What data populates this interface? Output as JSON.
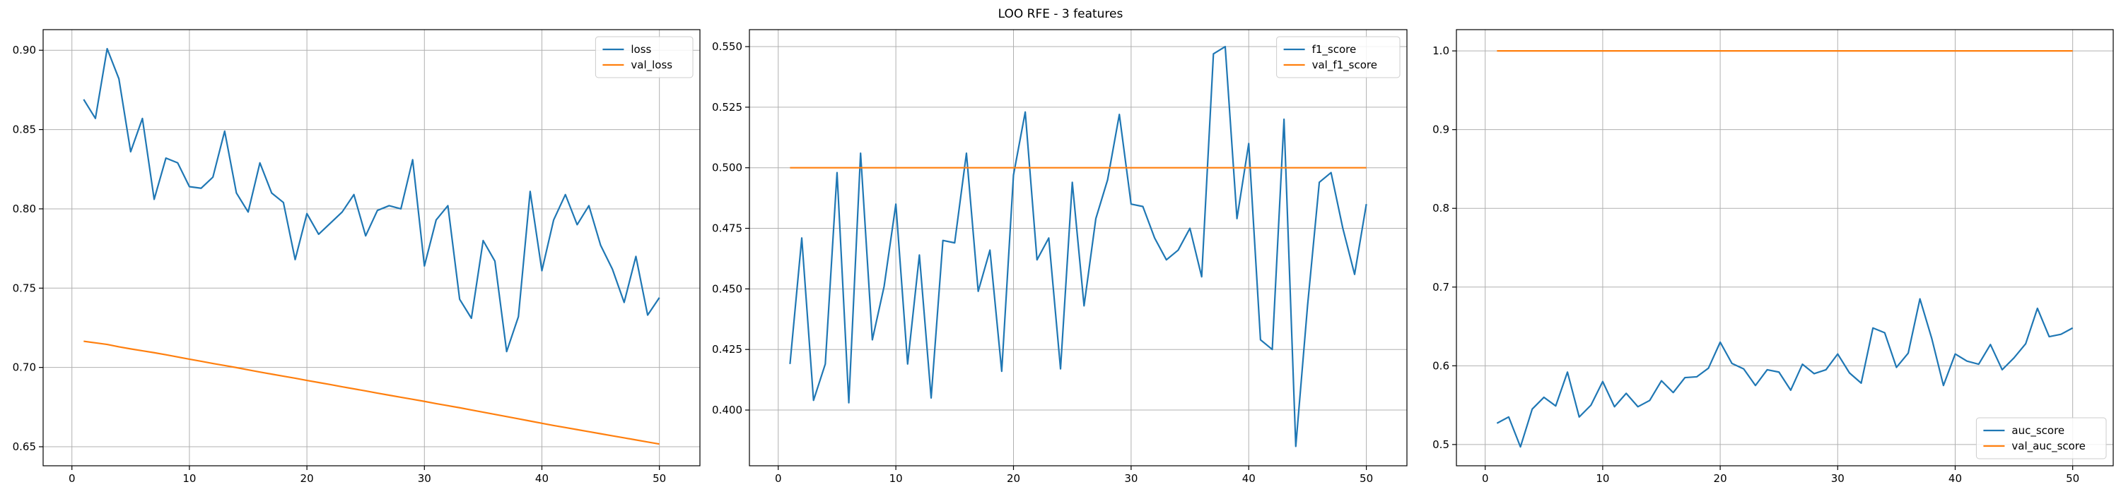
{
  "figure": {
    "title": "LOO RFE - 3 features"
  },
  "colors": {
    "train": "#1f77b4",
    "val": "#ff7f0e",
    "grid": "#b0b0b0",
    "axis": "#000000"
  },
  "chart_data": [
    {
      "type": "line",
      "title": "",
      "xlabel": "",
      "ylabel": "",
      "xlim": [
        -2.45,
        53.45
      ],
      "ylim": [
        0.638,
        0.913
      ],
      "xticks": [
        0,
        10,
        20,
        30,
        40,
        50
      ],
      "yticks": [
        0.65,
        0.7,
        0.75,
        0.8,
        0.85,
        0.9
      ],
      "ytick_labels": [
        "0.65",
        "0.70",
        "0.75",
        "0.80",
        "0.85",
        "0.90"
      ],
      "grid": true,
      "legend": "top-right",
      "x": [
        1,
        2,
        3,
        4,
        5,
        6,
        7,
        8,
        9,
        10,
        11,
        12,
        13,
        14,
        15,
        16,
        17,
        18,
        19,
        20,
        21,
        22,
        23,
        24,
        25,
        26,
        27,
        28,
        29,
        30,
        31,
        32,
        33,
        34,
        35,
        36,
        37,
        38,
        39,
        40,
        41,
        42,
        43,
        44,
        45,
        46,
        47,
        48,
        49,
        50
      ],
      "series": [
        {
          "name": "loss",
          "color": "#1f77b4",
          "values": [
            0.869,
            0.857,
            0.901,
            0.882,
            0.836,
            0.857,
            0.806,
            0.832,
            0.829,
            0.814,
            0.813,
            0.82,
            0.849,
            0.81,
            0.798,
            0.829,
            0.81,
            0.804,
            0.768,
            0.797,
            0.784,
            0.791,
            0.798,
            0.809,
            0.783,
            0.799,
            0.802,
            0.8,
            0.831,
            0.764,
            0.793,
            0.802,
            0.743,
            0.731,
            0.78,
            0.767,
            0.71,
            0.732,
            0.811,
            0.761,
            0.793,
            0.809,
            0.79,
            0.802,
            0.777,
            0.762,
            0.741,
            0.77,
            0.733,
            0.744
          ]
        },
        {
          "name": "val_loss",
          "color": "#ff7f0e",
          "values": [
            0.7165,
            0.7155,
            0.7145,
            0.713,
            0.7117,
            0.7105,
            0.7093,
            0.708,
            0.7066,
            0.7052,
            0.7039,
            0.7025,
            0.7012,
            0.6999,
            0.6985,
            0.6971,
            0.6958,
            0.6945,
            0.6932,
            0.6918,
            0.6905,
            0.6892,
            0.6878,
            0.6865,
            0.6852,
            0.6838,
            0.6825,
            0.6812,
            0.6799,
            0.6786,
            0.6772,
            0.6759,
            0.6746,
            0.6732,
            0.6718,
            0.6704,
            0.669,
            0.6676,
            0.6662,
            0.6648,
            0.6634,
            0.6621,
            0.6608,
            0.6595,
            0.6582,
            0.6569,
            0.6556,
            0.6543,
            0.653,
            0.6517
          ]
        }
      ]
    },
    {
      "type": "line",
      "title": "",
      "xlabel": "",
      "ylabel": "",
      "xlim": [
        -2.45,
        53.45
      ],
      "ylim": [
        0.377,
        0.557
      ],
      "xticks": [
        0,
        10,
        20,
        30,
        40,
        50
      ],
      "yticks": [
        0.4,
        0.425,
        0.45,
        0.475,
        0.5,
        0.525,
        0.55
      ],
      "ytick_labels": [
        "0.400",
        "0.425",
        "0.450",
        "0.475",
        "0.500",
        "0.525",
        "0.550"
      ],
      "grid": true,
      "legend": "top-right",
      "x": [
        1,
        2,
        3,
        4,
        5,
        6,
        7,
        8,
        9,
        10,
        11,
        12,
        13,
        14,
        15,
        16,
        17,
        18,
        19,
        20,
        21,
        22,
        23,
        24,
        25,
        26,
        27,
        28,
        29,
        30,
        31,
        32,
        33,
        34,
        35,
        36,
        37,
        38,
        39,
        40,
        41,
        42,
        43,
        44,
        45,
        46,
        47,
        48,
        49,
        50
      ],
      "series": [
        {
          "name": "f1_score",
          "color": "#1f77b4",
          "values": [
            0.419,
            0.471,
            0.404,
            0.419,
            0.498,
            0.403,
            0.506,
            0.429,
            0.451,
            0.485,
            0.419,
            0.464,
            0.405,
            0.47,
            0.469,
            0.506,
            0.449,
            0.466,
            0.416,
            0.497,
            0.523,
            0.462,
            0.471,
            0.417,
            0.494,
            0.443,
            0.479,
            0.495,
            0.522,
            0.485,
            0.484,
            0.471,
            0.462,
            0.466,
            0.475,
            0.455,
            0.547,
            0.55,
            0.479,
            0.51,
            0.429,
            0.425,
            0.52,
            0.385,
            0.443,
            0.494,
            0.498,
            0.475,
            0.456,
            0.485
          ]
        },
        {
          "name": "val_f1_score",
          "color": "#ff7f0e",
          "values": [
            0.5,
            0.5,
            0.5,
            0.5,
            0.5,
            0.5,
            0.5,
            0.5,
            0.5,
            0.5,
            0.5,
            0.5,
            0.5,
            0.5,
            0.5,
            0.5,
            0.5,
            0.5,
            0.5,
            0.5,
            0.5,
            0.5,
            0.5,
            0.5,
            0.5,
            0.5,
            0.5,
            0.5,
            0.5,
            0.5,
            0.5,
            0.5,
            0.5,
            0.5,
            0.5,
            0.5,
            0.5,
            0.5,
            0.5,
            0.5,
            0.5,
            0.5,
            0.5,
            0.5,
            0.5,
            0.5,
            0.5,
            0.5,
            0.5,
            0.5
          ]
        }
      ]
    },
    {
      "type": "line",
      "title": "",
      "xlabel": "",
      "ylabel": "",
      "xlim": [
        -2.45,
        53.45
      ],
      "ylim": [
        0.473,
        1.027
      ],
      "xticks": [
        0,
        10,
        20,
        30,
        40,
        50
      ],
      "yticks": [
        0.5,
        0.6,
        0.7,
        0.8,
        0.9,
        1.0
      ],
      "ytick_labels": [
        "0.5",
        "0.6",
        "0.7",
        "0.8",
        "0.9",
        "1.0"
      ],
      "grid": true,
      "legend": "bottom-right",
      "x": [
        1,
        2,
        3,
        4,
        5,
        6,
        7,
        8,
        9,
        10,
        11,
        12,
        13,
        14,
        15,
        16,
        17,
        18,
        19,
        20,
        21,
        22,
        23,
        24,
        25,
        26,
        27,
        28,
        29,
        30,
        31,
        32,
        33,
        34,
        35,
        36,
        37,
        38,
        39,
        40,
        41,
        42,
        43,
        44,
        45,
        46,
        47,
        48,
        49,
        50
      ],
      "series": [
        {
          "name": "auc_score",
          "color": "#1f77b4",
          "values": [
            0.527,
            0.535,
            0.497,
            0.545,
            0.56,
            0.549,
            0.592,
            0.535,
            0.55,
            0.58,
            0.548,
            0.565,
            0.548,
            0.556,
            0.581,
            0.566,
            0.585,
            0.586,
            0.597,
            0.63,
            0.603,
            0.596,
            0.575,
            0.595,
            0.592,
            0.569,
            0.602,
            0.59,
            0.595,
            0.615,
            0.591,
            0.578,
            0.648,
            0.642,
            0.598,
            0.616,
            0.685,
            0.635,
            0.575,
            0.615,
            0.606,
            0.602,
            0.627,
            0.595,
            0.61,
            0.628,
            0.673,
            0.637,
            0.64,
            0.648
          ]
        },
        {
          "name": "val_auc_score",
          "color": "#ff7f0e",
          "values": [
            1.0,
            1.0,
            1.0,
            1.0,
            1.0,
            1.0,
            1.0,
            1.0,
            1.0,
            1.0,
            1.0,
            1.0,
            1.0,
            1.0,
            1.0,
            1.0,
            1.0,
            1.0,
            1.0,
            1.0,
            1.0,
            1.0,
            1.0,
            1.0,
            1.0,
            1.0,
            1.0,
            1.0,
            1.0,
            1.0,
            1.0,
            1.0,
            1.0,
            1.0,
            1.0,
            1.0,
            1.0,
            1.0,
            1.0,
            1.0,
            1.0,
            1.0,
            1.0,
            1.0,
            1.0,
            1.0,
            1.0,
            1.0,
            1.0,
            1.0
          ]
        }
      ]
    }
  ]
}
